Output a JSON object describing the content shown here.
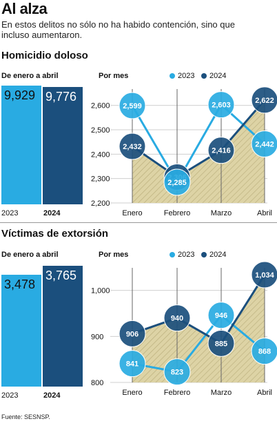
{
  "title": "Al alza",
  "subtitle": "En estos delitos no sólo no ha habido contención, sino que incluso aumentaron.",
  "source": "Fuente: SESNSP.",
  "colors": {
    "c2023": "#29abe2",
    "c2024": "#1b4f7d",
    "fill": "#ddd3a5",
    "hatch": "#b7ab78"
  },
  "chart_data": [
    {
      "section": "Homicidio doloso",
      "totals": {
        "label": "De enero a abril",
        "type": "bar",
        "categories": [
          "2023",
          "2024"
        ],
        "values": [
          9929,
          9776
        ],
        "value_labels": [
          "9,929",
          "9,776"
        ]
      },
      "monthly": {
        "label": "Por mes",
        "type": "line",
        "categories": [
          "Enero",
          "Febrero",
          "Marzo",
          "Abril"
        ],
        "series": [
          {
            "name": "2023",
            "values": [
              2599,
              2285,
              2603,
              2442
            ],
            "labels": [
              "2,599",
              "2,285",
              "2,603",
              "2,442"
            ]
          },
          {
            "name": "2024",
            "values": [
              2432,
              2306,
              2416,
              2622
            ],
            "labels": [
              "2,432",
              "2,306",
              "2,416",
              "2,622"
            ]
          }
        ],
        "ylim": [
          2200,
          2650
        ],
        "yticks": [
          2200,
          2300,
          2400,
          2500,
          2600
        ],
        "ytick_labels": [
          "2,200",
          "2,300",
          "2,400",
          "2,500",
          "2,600"
        ],
        "legend": "top"
      }
    },
    {
      "section": "Víctimas de extorsión",
      "totals": {
        "label": "De enero a abril",
        "type": "bar",
        "categories": [
          "2023",
          "2024"
        ],
        "values": [
          3478,
          3765
        ],
        "value_labels": [
          "3,478",
          "3,765"
        ]
      },
      "monthly": {
        "label": "Por mes",
        "type": "line",
        "categories": [
          "Enero",
          "Febrero",
          "Marzo",
          "Abril"
        ],
        "series": [
          {
            "name": "2023",
            "values": [
              841,
              823,
              946,
              868
            ],
            "labels": [
              "841",
              "823",
              "946",
              "868"
            ]
          },
          {
            "name": "2024",
            "values": [
              906,
              940,
              885,
              1034
            ],
            "labels": [
              "906",
              "940",
              "885",
              "1,034"
            ]
          }
        ],
        "ylim": [
          800,
          1040
        ],
        "yticks": [
          800,
          900,
          1000
        ],
        "ytick_labels": [
          "800",
          "900",
          "1,000"
        ],
        "legend": "top"
      }
    }
  ]
}
